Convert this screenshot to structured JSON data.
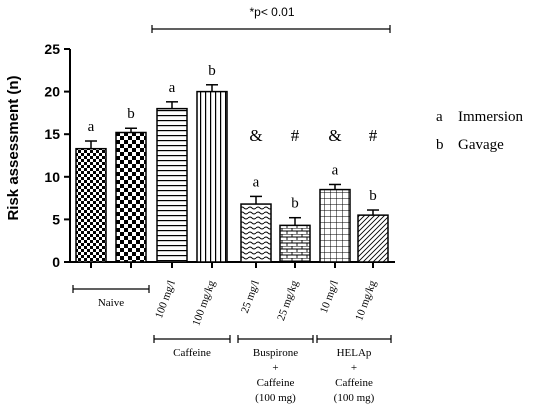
{
  "chart_data": {
    "type": "bar",
    "ylabel": "Risk assessment (n)",
    "ylim": [
      0,
      25
    ],
    "yticks": [
      "0",
      "5",
      "10",
      "15",
      "20",
      "25"
    ],
    "significance_label": "*p< 0.01",
    "bars": [
      {
        "tick": "",
        "value": 13.3,
        "error": 0.9,
        "letter": "a",
        "symbol": "",
        "pattern": "fine-check"
      },
      {
        "tick": "",
        "value": 15.2,
        "error": 0.5,
        "letter": "b",
        "symbol": "",
        "pattern": "bold-check"
      },
      {
        "tick": "100 mg/l",
        "value": 18.0,
        "error": 0.8,
        "letter": "a",
        "symbol": "",
        "pattern": "horizontal"
      },
      {
        "tick": "100 mg/kg",
        "value": 20.0,
        "error": 0.8,
        "letter": "b",
        "symbol": "",
        "pattern": "vertical"
      },
      {
        "tick": "25 mg/l",
        "value": 6.8,
        "error": 0.9,
        "letter": "a",
        "symbol": "&",
        "pattern": "wave"
      },
      {
        "tick": "25 mg/kg",
        "value": 4.3,
        "error": 0.9,
        "letter": "b",
        "symbol": "#",
        "pattern": "brick"
      },
      {
        "tick": "10 mg/l",
        "value": 8.5,
        "error": 0.6,
        "letter": "a",
        "symbol": "&",
        "pattern": "grid"
      },
      {
        "tick": "10 mg/kg",
        "value": 5.5,
        "error": 0.6,
        "letter": "b",
        "symbol": "#",
        "pattern": "diagonal"
      }
    ],
    "groups": [
      {
        "lines": [
          "Naive"
        ],
        "bars": [
          0,
          1
        ]
      },
      {
        "lines": [
          "Caffeine"
        ],
        "bars": [
          2,
          3
        ]
      },
      {
        "lines": [
          "Buspirone",
          "+",
          "Caffeine",
          "(100 mg)"
        ],
        "bars": [
          4,
          5
        ]
      },
      {
        "lines": [
          "HELAp",
          "+",
          "Caffeine",
          "(100 mg)"
        ],
        "bars": [
          6,
          7
        ]
      }
    ],
    "legend": [
      {
        "key": "a",
        "label": "Immersion"
      },
      {
        "key": "b",
        "label": "Gavage"
      }
    ]
  }
}
